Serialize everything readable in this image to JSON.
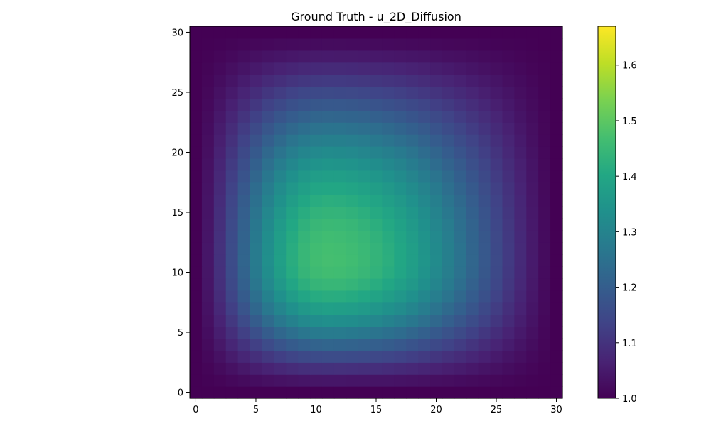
{
  "chart_data": {
    "type": "heatmap",
    "title": "Ground Truth - u_2D_Diffusion",
    "xlabel": "",
    "ylabel": "",
    "grid": false,
    "colormap": "viridis",
    "x_range": [
      -0.5,
      30.5
    ],
    "y_range": [
      -0.5,
      30.5
    ],
    "x_ticks": [
      0,
      5,
      10,
      15,
      20,
      25,
      30
    ],
    "y_ticks": [
      0,
      5,
      10,
      15,
      20,
      25,
      30
    ],
    "grid_size": [
      31,
      31
    ],
    "peak_center": [
      11,
      11
    ],
    "value_range": [
      1.0,
      1.67
    ],
    "approx_peak_value": 1.47,
    "colorbar": {
      "min": 1.0,
      "max": 1.67,
      "ticks": [
        "1.0",
        "1.1",
        "1.2",
        "1.3",
        "1.4",
        "1.5",
        "1.6"
      ]
    }
  }
}
